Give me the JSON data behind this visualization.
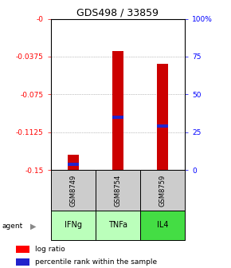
{
  "title": "GDS498 / 33859",
  "samples": [
    "GSM8749",
    "GSM8754",
    "GSM8759"
  ],
  "agents": [
    "IFNg",
    "TNFa",
    "IL4"
  ],
  "log_ratios": [
    -0.135,
    -0.032,
    -0.045
  ],
  "percentile_ranks": [
    0.04,
    0.35,
    0.29
  ],
  "ylim_left": [
    -0.15,
    0.0
  ],
  "ylim_right": [
    0.0,
    1.0
  ],
  "yticks_left": [
    -0.15,
    -0.1125,
    -0.075,
    -0.0375,
    0.0
  ],
  "yticks_right": [
    0.0,
    0.25,
    0.5,
    0.75,
    1.0
  ],
  "ytick_labels_left": [
    "-0.15",
    "-0.1125",
    "-0.075",
    "-0.0375",
    "-0"
  ],
  "ytick_labels_right": [
    "0",
    "25",
    "50",
    "75",
    "100%"
  ],
  "bar_color": "#cc0000",
  "rank_color": "#2222cc",
  "sample_bg": "#cccccc",
  "agent_colors": [
    "#bbffbb",
    "#bbffbb",
    "#44dd44"
  ],
  "grid_color": "#888888",
  "bar_width": 0.25
}
